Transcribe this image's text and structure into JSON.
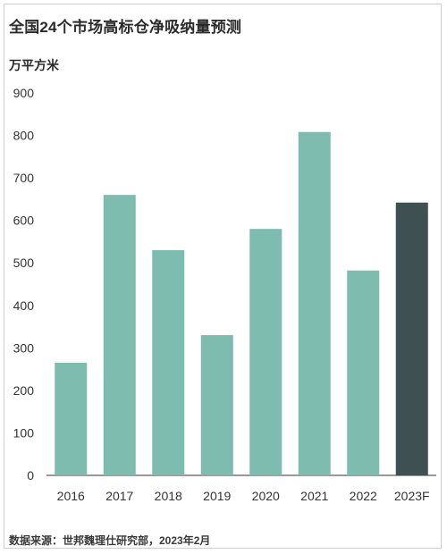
{
  "title": "全国24个市场高标仓净吸纳量预测",
  "unit": "万平方米",
  "source": "数据来源：世邦魏理仕研究部，2023年2月",
  "chart_data": {
    "type": "bar",
    "categories": [
      "2016",
      "2017",
      "2018",
      "2019",
      "2020",
      "2021",
      "2022",
      "2023F"
    ],
    "values": [
      265,
      660,
      530,
      330,
      580,
      808,
      482,
      642
    ],
    "ylabel": "万平方米",
    "ylim": [
      0,
      900
    ],
    "yticks": [
      0,
      100,
      200,
      300,
      400,
      500,
      600,
      700,
      800,
      900
    ],
    "colors": {
      "actual": "#7fbcb0",
      "forecast": "#3f5053"
    },
    "highlight_category": "2023F",
    "grid": false
  }
}
